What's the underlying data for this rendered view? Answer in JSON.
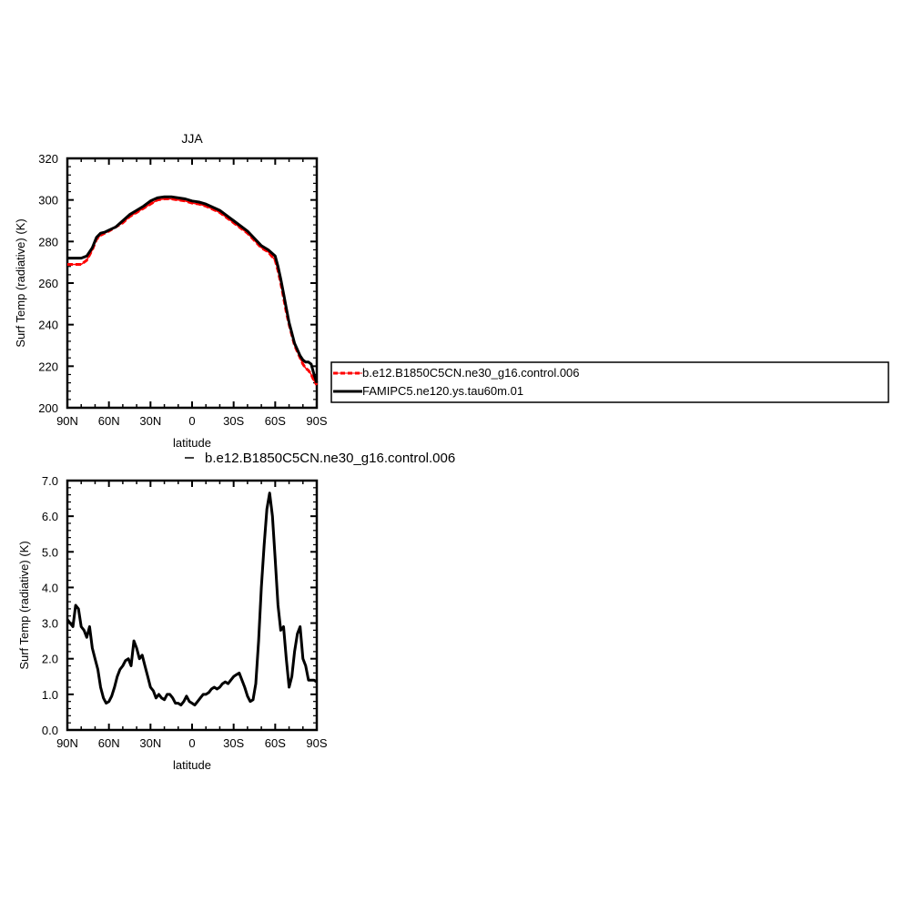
{
  "chart_data": [
    {
      "type": "line",
      "title": "JJA",
      "xlabel": "latitude",
      "ylabel": "Surf Temp (radiative) (K)",
      "xlim": [
        90,
        -90
      ],
      "ylim": [
        200,
        320
      ],
      "yticks": [
        200,
        220,
        240,
        260,
        280,
        300,
        320
      ],
      "xticks": [
        90,
        60,
        30,
        0,
        -30,
        -60,
        -90
      ],
      "xtick_labels": [
        "90N",
        "60N",
        "30N",
        "0",
        "30S",
        "60S",
        "90S"
      ],
      "legend_position": "right",
      "series": [
        {
          "name": "b.e12.B1850C5CN.ne30_g16.control.006",
          "color": "#ff0000",
          "style": "dashed",
          "x": [
            90,
            85,
            80,
            76,
            72,
            69,
            66,
            63,
            60,
            55,
            50,
            45,
            40,
            35,
            30,
            25,
            20,
            15,
            10,
            5,
            0,
            -5,
            -10,
            -20,
            -30,
            -40,
            -50,
            -55,
            -60,
            -62,
            -64,
            -66,
            -68,
            -70,
            -72,
            -74,
            -76,
            -78,
            -80,
            -82,
            -84,
            -86,
            -88,
            -90
          ],
          "y": [
            269,
            269,
            269,
            271,
            276,
            281,
            283,
            284,
            285,
            287,
            289,
            292,
            294,
            296,
            298,
            300,
            300.5,
            300.5,
            300,
            299.5,
            298.5,
            298,
            297,
            294,
            289,
            284,
            277,
            275,
            271,
            266,
            260,
            253,
            246,
            240,
            235,
            230,
            227,
            224,
            221,
            219,
            218,
            216,
            213,
            211
          ]
        },
        {
          "name": "FAMIPC5.ne120.ys.tau60m.01",
          "color": "#000000",
          "style": "solid",
          "x": [
            90,
            85,
            80,
            76,
            72,
            69,
            66,
            63,
            60,
            55,
            50,
            45,
            40,
            35,
            30,
            25,
            20,
            15,
            10,
            5,
            0,
            -5,
            -10,
            -20,
            -30,
            -40,
            -50,
            -55,
            -60,
            -62,
            -64,
            -66,
            -68,
            -70,
            -72,
            -74,
            -76,
            -78,
            -80,
            -82,
            -84,
            -86,
            -88,
            -90
          ],
          "y": [
            272,
            272,
            272,
            273,
            277,
            282,
            284,
            284.5,
            285.5,
            287,
            290,
            293,
            295,
            297,
            299.5,
            301,
            301.5,
            301.5,
            301,
            300.5,
            299.5,
            299,
            298,
            295,
            290,
            285,
            278,
            276,
            273,
            268,
            262,
            255,
            248,
            241,
            236,
            231,
            228,
            225,
            223,
            222,
            222,
            221,
            216,
            212
          ]
        }
      ]
    },
    {
      "type": "line",
      "title": "",
      "xlabel": "latitude",
      "ylabel": "Surf Temp (radiative) (K)",
      "xlim": [
        90,
        -90
      ],
      "ylim": [
        0,
        7
      ],
      "yticks": [
        0,
        1,
        2,
        3,
        4,
        5,
        6,
        7
      ],
      "ytick_labels": [
        "0.0",
        "1.0",
        "2.0",
        "3.0",
        "4.0",
        "5.0",
        "6.0",
        "7.0"
      ],
      "xticks": [
        90,
        60,
        30,
        0,
        -30,
        -60,
        -90
      ],
      "xtick_labels": [
        "90N",
        "60N",
        "30N",
        "0",
        "30S",
        "60S",
        "90S"
      ],
      "legend_position": "top",
      "series": [
        {
          "name": "b.e12.B1850C5CN.ne30_g16.control.006",
          "color": "#000000",
          "style": "solid",
          "x": [
            90,
            88,
            86,
            84,
            82,
            80,
            78,
            76,
            74,
            72,
            70,
            68,
            66,
            64,
            62,
            60,
            58,
            56,
            54,
            52,
            50,
            48,
            46,
            44,
            42,
            40,
            38,
            36,
            34,
            32,
            30,
            28,
            26,
            24,
            22,
            20,
            18,
            16,
            14,
            12,
            10,
            8,
            6,
            4,
            2,
            0,
            -2,
            -4,
            -6,
            -8,
            -10,
            -12,
            -14,
            -16,
            -18,
            -20,
            -22,
            -24,
            -26,
            -28,
            -30,
            -32,
            -34,
            -36,
            -38,
            -40,
            -42,
            -44,
            -46,
            -48,
            -50,
            -52,
            -54,
            -56,
            -58,
            -60,
            -62,
            -64,
            -66,
            -68,
            -70,
            -72,
            -74,
            -76,
            -78,
            -80,
            -82,
            -84,
            -86,
            -88,
            -90
          ],
          "y": [
            3.1,
            3.0,
            2.9,
            3.5,
            3.4,
            2.9,
            2.8,
            2.6,
            2.9,
            2.3,
            2.0,
            1.7,
            1.2,
            0.9,
            0.75,
            0.8,
            0.95,
            1.2,
            1.5,
            1.7,
            1.8,
            1.95,
            2.0,
            1.8,
            2.5,
            2.3,
            2.0,
            2.1,
            1.8,
            1.5,
            1.2,
            1.1,
            0.9,
            1.0,
            0.9,
            0.85,
            1.0,
            1.0,
            0.9,
            0.75,
            0.75,
            0.7,
            0.8,
            0.95,
            0.8,
            0.75,
            0.7,
            0.8,
            0.9,
            1.0,
            1.0,
            1.05,
            1.15,
            1.2,
            1.15,
            1.2,
            1.3,
            1.35,
            1.3,
            1.4,
            1.5,
            1.55,
            1.6,
            1.4,
            1.2,
            0.95,
            0.8,
            0.85,
            1.3,
            2.5,
            4.0,
            5.2,
            6.2,
            6.65,
            6.0,
            4.8,
            3.5,
            2.8,
            2.9,
            2.0,
            1.2,
            1.5,
            2.2,
            2.7,
            2.9,
            2.0,
            1.8,
            1.4,
            1.4,
            1.4,
            1.35
          ],
          "legend_label": "b.e12.B1850C5CN.ne30_g16.control.006"
        }
      ]
    }
  ]
}
